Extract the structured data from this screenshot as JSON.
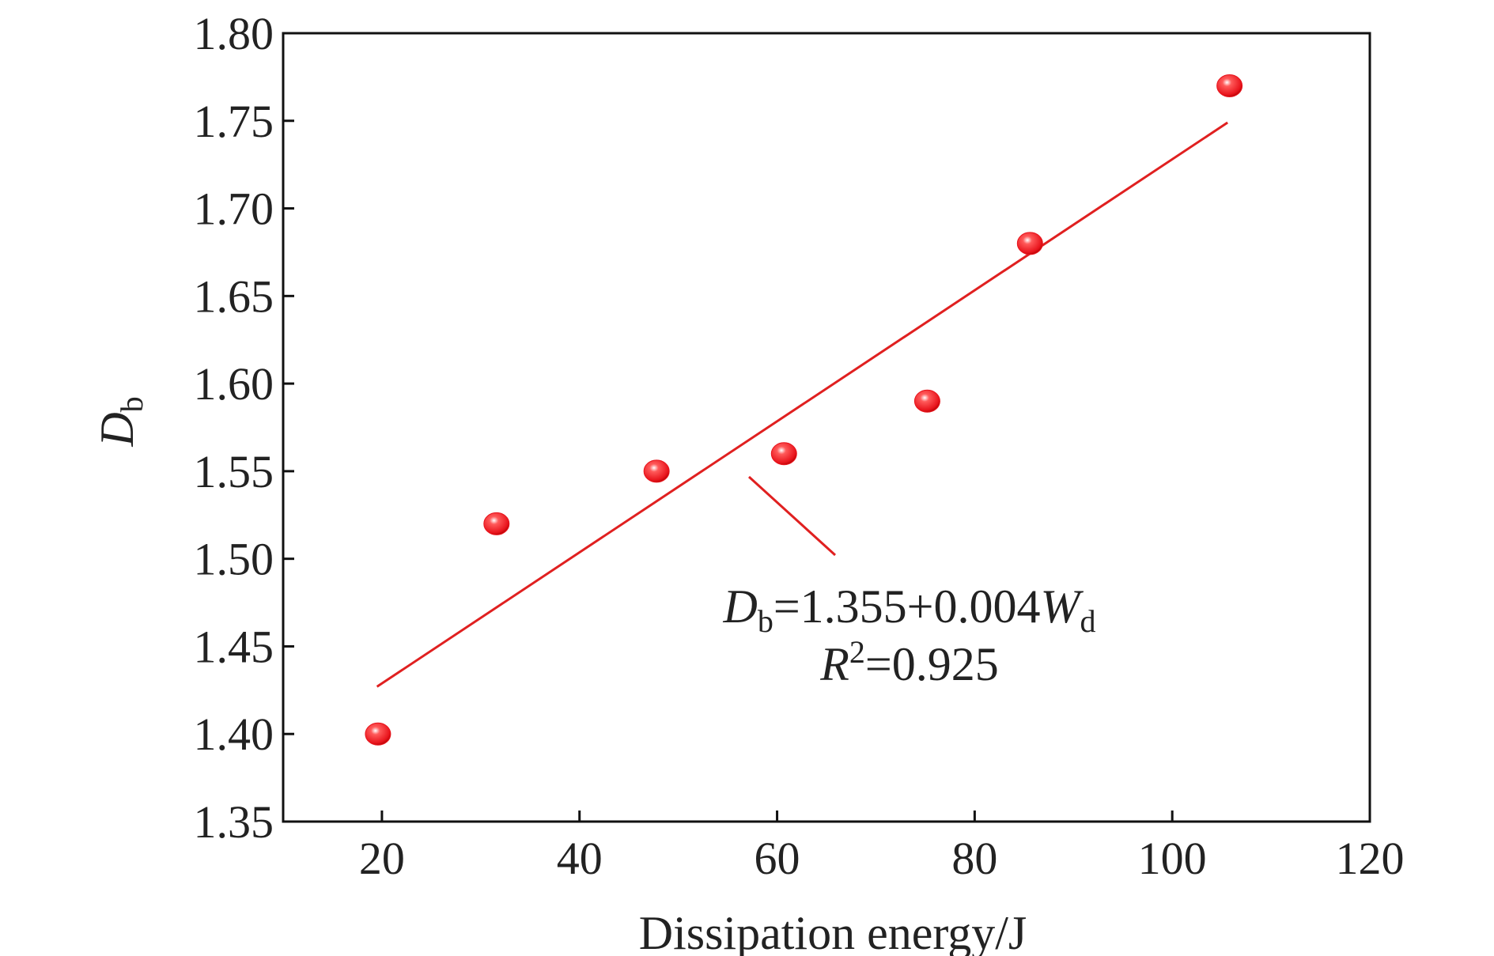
{
  "chart_data": {
    "type": "scatter",
    "x_label": "Dissipation energy/J",
    "y_label": {
      "main": "D",
      "sub": "b"
    },
    "xlim": [
      10,
      120
    ],
    "xticks": [
      20,
      40,
      60,
      80,
      100,
      120
    ],
    "ylim": [
      1.35,
      1.8
    ],
    "yticks": [
      {
        "value": 1.35,
        "label": "1.35"
      },
      {
        "value": 1.4,
        "label": "1.40"
      },
      {
        "value": 1.45,
        "label": "1.45"
      },
      {
        "value": 1.5,
        "label": "1.50"
      },
      {
        "value": 1.55,
        "label": "1.55"
      },
      {
        "value": 1.6,
        "label": "1.60"
      },
      {
        "value": 1.65,
        "label": "1.65"
      },
      {
        "value": 1.7,
        "label": "1.70"
      },
      {
        "value": 1.75,
        "label": "1.75"
      },
      {
        "value": 1.8,
        "label": "1.80"
      }
    ],
    "series": [
      {
        "type": "scatter",
        "color": "#e8141c",
        "x": [
          19.6,
          31.6,
          47.8,
          60.7,
          75.2,
          85.6,
          105.8
        ],
        "values": [
          1.4,
          1.52,
          1.55,
          1.56,
          1.59,
          1.68,
          1.77
        ]
      },
      {
        "type": "line",
        "color": "#e02020",
        "x": [
          19.5,
          105.6
        ],
        "values": [
          1.427,
          1.749
        ]
      }
    ],
    "annotation": {
      "equation": {
        "d": "D",
        "d_sub": "b",
        "body": "=1.355+0.004",
        "w": "W",
        "w_sub": "d"
      },
      "r2": {
        "r": "R",
        "sup": "2",
        "body": "=0.925"
      }
    }
  }
}
